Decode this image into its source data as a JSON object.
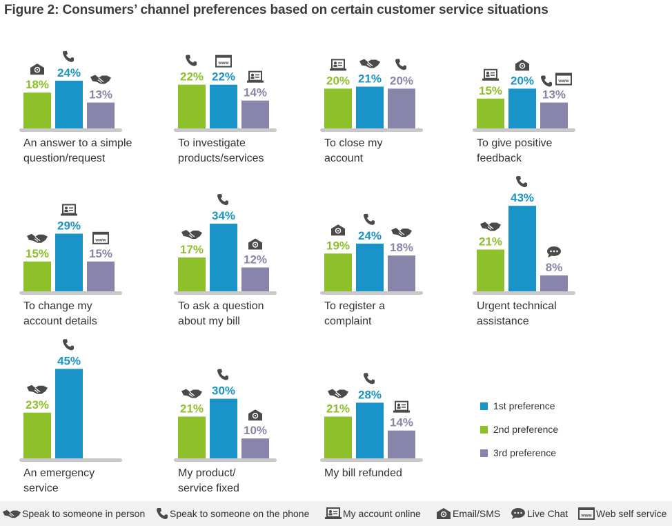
{
  "title": "Figure 2: Consumers’ channel preferences based on certain customer service situations",
  "colors": {
    "first": "#1a93c8",
    "second": "#8dc02b",
    "third": "#8786aa",
    "baseline": "#c9c9c9",
    "icon": "#4a4a4a"
  },
  "legend": [
    {
      "key": "first",
      "label": "1st preference"
    },
    {
      "key": "second",
      "label": "2nd preference"
    },
    {
      "key": "third",
      "label": "3rd preference"
    }
  ],
  "channels": [
    {
      "key": "person",
      "icon": "handshake-icon",
      "label": "Speak to someone in person"
    },
    {
      "key": "phone",
      "icon": "phone-icon",
      "label": "Speak to someone on the phone"
    },
    {
      "key": "account",
      "icon": "laptop-icon",
      "label": "My account online"
    },
    {
      "key": "email",
      "icon": "email-icon",
      "label": "Email/SMS"
    },
    {
      "key": "chat",
      "icon": "chat-icon",
      "label": "Live Chat"
    },
    {
      "key": "web",
      "icon": "web-icon",
      "label": "Web self service"
    }
  ],
  "chart_data": {
    "type": "bar",
    "value_unit": "%",
    "panels": [
      {
        "label": [
          "An answer to a simple",
          "question/request"
        ],
        "bars": [
          {
            "rank": "second",
            "value": 18,
            "channel": "email"
          },
          {
            "rank": "first",
            "value": 24,
            "channel": "phone"
          },
          {
            "rank": "third",
            "value": 13,
            "channel": "person"
          }
        ]
      },
      {
        "label": [
          "To investigate",
          "products/services"
        ],
        "bars": [
          {
            "rank": "second",
            "value": 22,
            "channel": "phone"
          },
          {
            "rank": "first",
            "value": 22,
            "channel": "web"
          },
          {
            "rank": "third",
            "value": 14,
            "channel": "account"
          }
        ]
      },
      {
        "label": [
          "To close my",
          "account"
        ],
        "bars": [
          {
            "rank": "second",
            "value": 20,
            "channel": "account"
          },
          {
            "rank": "first",
            "value": 21,
            "channel": "person"
          },
          {
            "rank": "third",
            "value": 20,
            "channel": "phone"
          }
        ]
      },
      {
        "label": [
          "To give positive",
          "feedback"
        ],
        "bars": [
          {
            "rank": "second",
            "value": 15,
            "channel": "account"
          },
          {
            "rank": "first",
            "value": 20,
            "channel": "email"
          },
          {
            "rank": "third",
            "value": 13,
            "channel": "phone+web"
          }
        ]
      },
      {
        "label": [
          "To change my",
          "account details"
        ],
        "bars": [
          {
            "rank": "second",
            "value": 15,
            "channel": "person"
          },
          {
            "rank": "first",
            "value": 29,
            "channel": "account"
          },
          {
            "rank": "third",
            "value": 15,
            "channel": "web"
          }
        ]
      },
      {
        "label": [
          "To ask a question",
          "about my bill"
        ],
        "bars": [
          {
            "rank": "second",
            "value": 17,
            "channel": "person"
          },
          {
            "rank": "first",
            "value": 34,
            "channel": "phone"
          },
          {
            "rank": "third",
            "value": 12,
            "channel": "email"
          }
        ]
      },
      {
        "label": [
          "To register a",
          "complaint"
        ],
        "bars": [
          {
            "rank": "second",
            "value": 19,
            "channel": "email"
          },
          {
            "rank": "first",
            "value": 24,
            "channel": "phone"
          },
          {
            "rank": "third",
            "value": 18,
            "channel": "person"
          }
        ]
      },
      {
        "label": [
          "Urgent technical",
          "assistance"
        ],
        "bars": [
          {
            "rank": "second",
            "value": 21,
            "channel": "person"
          },
          {
            "rank": "first",
            "value": 43,
            "channel": "phone"
          },
          {
            "rank": "third",
            "value": 8,
            "channel": "chat"
          }
        ]
      },
      {
        "label": [
          "An emergency",
          "service"
        ],
        "bars": [
          {
            "rank": "second",
            "value": 23,
            "channel": "person"
          },
          {
            "rank": "first",
            "value": 45,
            "channel": "phone"
          }
        ]
      },
      {
        "label": [
          "My product/",
          "service fixed"
        ],
        "bars": [
          {
            "rank": "second",
            "value": 21,
            "channel": "person"
          },
          {
            "rank": "first",
            "value": 30,
            "channel": "phone"
          },
          {
            "rank": "third",
            "value": 10,
            "channel": "email"
          }
        ]
      },
      {
        "label": [
          "My bill refunded"
        ],
        "bars": [
          {
            "rank": "second",
            "value": 21,
            "channel": "person"
          },
          {
            "rank": "first",
            "value": 28,
            "channel": "phone"
          },
          {
            "rank": "third",
            "value": 14,
            "channel": "account"
          }
        ]
      }
    ]
  }
}
